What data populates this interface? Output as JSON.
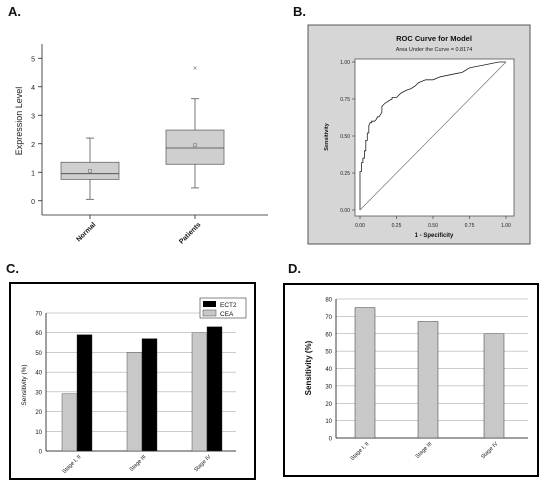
{
  "panels": {
    "a": {
      "label": "A."
    },
    "b": {
      "label": "B."
    },
    "c": {
      "label": "C."
    },
    "d": {
      "label": "D."
    }
  },
  "chart_data": [
    {
      "type": "box",
      "title": "",
      "xlabel": "",
      "ylabel": "Expression Level",
      "ylim": [
        -0.5,
        5.5
      ],
      "yticks": [
        0,
        1,
        2,
        3,
        4,
        5
      ],
      "categories": [
        "Normal",
        "Patients"
      ],
      "boxes": [
        {
          "name": "Normal",
          "whisker_low": 0.05,
          "q1": 0.75,
          "median": 0.95,
          "q3": 1.35,
          "whisker_high": 2.2,
          "mean": 1.05,
          "outliers": []
        },
        {
          "name": "Patients",
          "whisker_low": 0.45,
          "q1": 1.28,
          "median": 1.85,
          "q3": 2.48,
          "whisker_high": 3.58,
          "mean": 1.95,
          "outliers": [
            4.65
          ]
        }
      ],
      "grid": false,
      "colors": {
        "box": "#cfcfcf",
        "stroke": "#666666"
      }
    },
    {
      "type": "line",
      "title": "ROC Curve for Model",
      "subtitle": "Area Under the Curve = 0.8174",
      "xlabel": "1 - Specificity",
      "ylabel": "Sensitivity",
      "xlim": [
        0,
        1
      ],
      "ylim": [
        0,
        1
      ],
      "xticks": [
        "0.00",
        "0.25",
        "0.50",
        "0.75",
        "1.00"
      ],
      "yticks": [
        "0.00",
        "0.25",
        "0.50",
        "0.75",
        "1.00"
      ],
      "series": [
        {
          "x": [
            0,
            0,
            0.01,
            0.01,
            0.02,
            0.02,
            0.03,
            0.03,
            0.04,
            0.04,
            0.05,
            0.05,
            0.06,
            0.06,
            0.07,
            0.08,
            0.08,
            0.1,
            0.11,
            0.12,
            0.13,
            0.15,
            0.15,
            0.17,
            0.2,
            0.22,
            0.22,
            0.25,
            0.28,
            0.3,
            0.32,
            0.35,
            0.38,
            0.4,
            0.45,
            0.5,
            0.55,
            0.6,
            0.65,
            0.7,
            0.75,
            0.8,
            0.85,
            0.9,
            0.95,
            1.0
          ],
          "y": [
            0,
            0.26,
            0.26,
            0.32,
            0.32,
            0.35,
            0.35,
            0.4,
            0.4,
            0.47,
            0.47,
            0.52,
            0.52,
            0.57,
            0.59,
            0.59,
            0.6,
            0.6,
            0.61,
            0.63,
            0.63,
            0.66,
            0.7,
            0.72,
            0.74,
            0.75,
            0.76,
            0.76,
            0.79,
            0.8,
            0.81,
            0.82,
            0.84,
            0.86,
            0.88,
            0.88,
            0.9,
            0.91,
            0.92,
            0.93,
            0.96,
            0.97,
            0.98,
            0.99,
            1.0,
            1.0
          ]
        },
        {
          "x": [
            0,
            1
          ],
          "y": [
            0,
            1
          ]
        }
      ],
      "grid": false,
      "colors": {
        "outer": "#d6d6d6",
        "plot": "#ffffff",
        "line": "#222222",
        "ref": "#666666"
      }
    },
    {
      "type": "bar",
      "title": "",
      "xlabel": "",
      "ylabel": "Sensitivity (%)",
      "ylim": [
        0,
        70
      ],
      "yticks": [
        0,
        10,
        20,
        30,
        40,
        50,
        60,
        70
      ],
      "categories": [
        "Stage I, II",
        "Stage III",
        "Stage IV"
      ],
      "series": [
        {
          "name": "CEA",
          "values": [
            29,
            50,
            60
          ],
          "color": "#c8c8c8"
        },
        {
          "name": "ECT2",
          "values": [
            59,
            57,
            63
          ],
          "color": "#000000"
        }
      ],
      "legend": {
        "position": "top-right",
        "entries": [
          "ECT2",
          "CEA"
        ]
      },
      "grid": true
    },
    {
      "type": "bar",
      "title": "",
      "xlabel": "",
      "ylabel": "Sensitivity (%)",
      "ylim": [
        0,
        80
      ],
      "yticks": [
        0,
        10,
        20,
        30,
        40,
        50,
        60,
        70,
        80
      ],
      "categories": [
        "Stage I, II",
        "Stage III",
        "Stage IV"
      ],
      "values": [
        75,
        67,
        60
      ],
      "grid": true,
      "colors": {
        "bar": "#c8c8c8"
      }
    }
  ]
}
